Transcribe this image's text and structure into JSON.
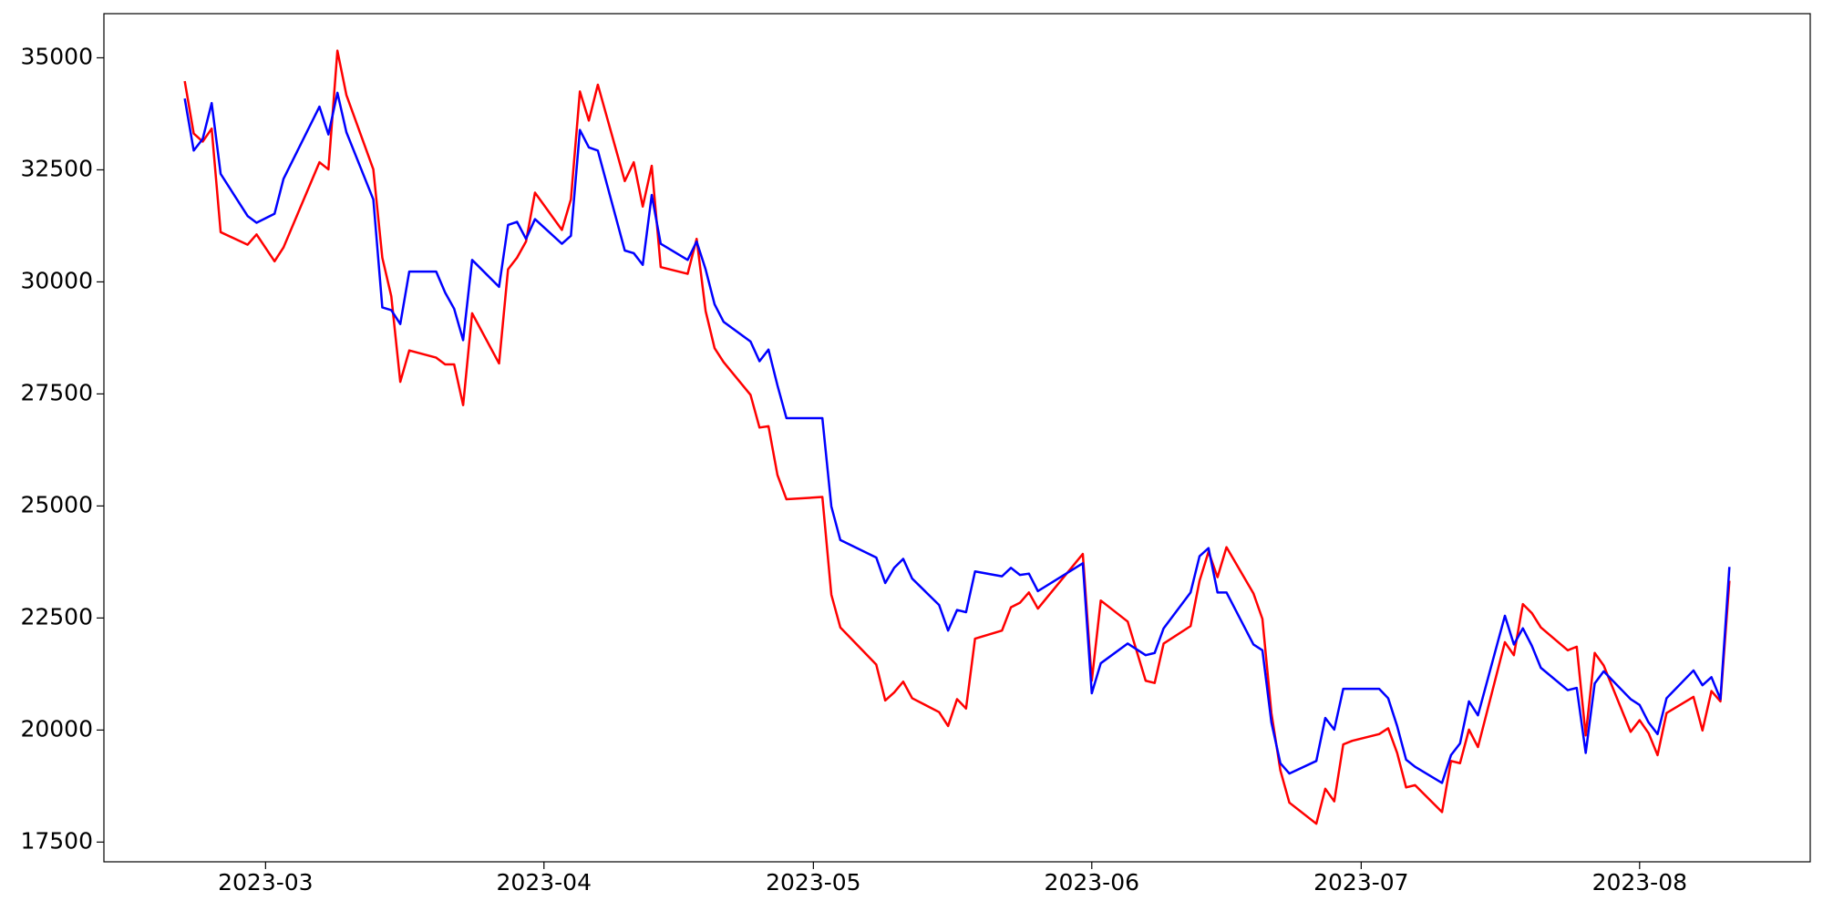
{
  "chart_data": {
    "type": "line",
    "x": [
      "2023-02-20",
      "2023-02-21",
      "2023-02-22",
      "2023-02-23",
      "2023-02-24",
      "2023-02-27",
      "2023-02-28",
      "2023-03-02",
      "2023-03-03",
      "2023-03-07",
      "2023-03-08",
      "2023-03-09",
      "2023-03-10",
      "2023-03-13",
      "2023-03-14",
      "2023-03-15",
      "2023-03-16",
      "2023-03-17",
      "2023-03-20",
      "2023-03-21",
      "2023-03-22",
      "2023-03-23",
      "2023-03-24",
      "2023-03-27",
      "2023-03-28",
      "2023-03-29",
      "2023-03-30",
      "2023-03-31",
      "2023-04-03",
      "2023-04-04",
      "2023-04-05",
      "2023-04-06",
      "2023-04-07",
      "2023-04-10",
      "2023-04-11",
      "2023-04-12",
      "2023-04-13",
      "2023-04-14",
      "2023-04-17",
      "2023-04-18",
      "2023-04-19",
      "2023-04-20",
      "2023-04-21",
      "2023-04-24",
      "2023-04-25",
      "2023-04-26",
      "2023-04-27",
      "2023-04-28",
      "2023-05-02",
      "2023-05-03",
      "2023-05-04",
      "2023-05-08",
      "2023-05-09",
      "2023-05-10",
      "2023-05-11",
      "2023-05-12",
      "2023-05-15",
      "2023-05-16",
      "2023-05-17",
      "2023-05-18",
      "2023-05-19",
      "2023-05-22",
      "2023-05-23",
      "2023-05-24",
      "2023-05-25",
      "2023-05-26",
      "2023-05-31",
      "2023-06-01",
      "2023-06-02",
      "2023-06-05",
      "2023-06-07",
      "2023-06-08",
      "2023-06-09",
      "2023-06-12",
      "2023-06-13",
      "2023-06-14",
      "2023-06-15",
      "2023-06-16",
      "2023-06-19",
      "2023-06-20",
      "2023-06-21",
      "2023-06-22",
      "2023-06-23",
      "2023-06-26",
      "2023-06-27",
      "2023-06-28",
      "2023-06-29",
      "2023-06-30",
      "2023-07-03",
      "2023-07-04",
      "2023-07-05",
      "2023-07-06",
      "2023-07-07",
      "2023-07-10",
      "2023-07-11",
      "2023-07-12",
      "2023-07-13",
      "2023-07-14",
      "2023-07-17",
      "2023-07-18",
      "2023-07-19",
      "2023-07-20",
      "2023-07-21",
      "2023-07-24",
      "2023-07-25",
      "2023-07-26",
      "2023-07-27",
      "2023-07-28",
      "2023-07-31",
      "2023-08-01",
      "2023-08-02",
      "2023-08-03",
      "2023-08-04",
      "2023-08-07",
      "2023-08-08",
      "2023-08-09",
      "2023-08-10",
      "2023-08-11"
    ],
    "series": [
      {
        "color": "#ff0000",
        "values": [
          34480,
          33310,
          33130,
          33420,
          31110,
          30830,
          31060,
          30460,
          30770,
          32670,
          32510,
          35160,
          34170,
          32510,
          30540,
          29680,
          27770,
          28470,
          28310,
          28160,
          28160,
          27250,
          29300,
          28180,
          30280,
          30540,
          30900,
          31990,
          31160,
          31840,
          34250,
          33600,
          34400,
          32250,
          32670,
          31680,
          32590,
          30330,
          30180,
          30960,
          29350,
          28520,
          28210,
          27480,
          26750,
          26780,
          25690,
          25150,
          25200,
          23020,
          22290,
          21460,
          20660,
          20840,
          21080,
          20710,
          20400,
          20090,
          20690,
          20480,
          22040,
          22220,
          22740,
          22840,
          23070,
          22710,
          23930,
          21100,
          22890,
          22420,
          21100,
          21050,
          21930,
          22320,
          23330,
          23980,
          23410,
          24080,
          23050,
          22480,
          20380,
          19100,
          18380,
          17910,
          18690,
          18410,
          19680,
          19760,
          19910,
          20040,
          19490,
          18720,
          18770,
          18170,
          19310,
          19260,
          20010,
          19620,
          21960,
          21670,
          22810,
          22610,
          22290,
          21780,
          21860,
          19880,
          21720,
          21440,
          19960,
          20220,
          19930,
          19440,
          20380,
          20740,
          19990,
          20870,
          20640,
          23330
        ]
      },
      {
        "color": "#0000ff",
        "values": [
          34090,
          32930,
          33190,
          33990,
          32410,
          31470,
          31320,
          31520,
          32300,
          33910,
          33290,
          34220,
          33340,
          31840,
          29430,
          29370,
          29060,
          30230,
          30230,
          29760,
          29400,
          28700,
          30490,
          29890,
          31270,
          31340,
          30960,
          31400,
          30850,
          31030,
          33390,
          33000,
          32930,
          30700,
          30640,
          30380,
          31940,
          30850,
          30490,
          30900,
          30280,
          29500,
          29110,
          28670,
          28230,
          28490,
          27690,
          26960,
          26960,
          24990,
          24240,
          23850,
          23280,
          23620,
          23820,
          23380,
          22790,
          22220,
          22680,
          22630,
          23540,
          23430,
          23620,
          23460,
          23490,
          23100,
          23720,
          20820,
          21490,
          21930,
          21670,
          21720,
          22270,
          23070,
          23880,
          24060,
          23070,
          23070,
          21910,
          21780,
          20170,
          19260,
          19030,
          19310,
          20270,
          20010,
          20920,
          20920,
          20920,
          20710,
          20090,
          19340,
          19180,
          18820,
          19440,
          19700,
          20640,
          20330,
          22550,
          21910,
          22270,
          21880,
          21390,
          20890,
          20940,
          19490,
          21040,
          21310,
          20690,
          20560,
          20170,
          19910,
          20710,
          21330,
          21000,
          21180,
          20690,
          23640
        ]
      }
    ],
    "xlim": [
      "2023-02-11",
      "2023-08-20"
    ],
    "xticks": [
      {
        "value": "2023-03-01",
        "label": "2023-03"
      },
      {
        "value": "2023-04-01",
        "label": "2023-04"
      },
      {
        "value": "2023-05-01",
        "label": "2023-05"
      },
      {
        "value": "2023-06-01",
        "label": "2023-06"
      },
      {
        "value": "2023-07-01",
        "label": "2023-07"
      },
      {
        "value": "2023-08-01",
        "label": "2023-08"
      }
    ],
    "ylim": [
      17060,
      35985
    ],
    "yticks": [
      17500,
      20000,
      22500,
      25000,
      27500,
      30000,
      32500,
      35000
    ],
    "grid": false
  }
}
